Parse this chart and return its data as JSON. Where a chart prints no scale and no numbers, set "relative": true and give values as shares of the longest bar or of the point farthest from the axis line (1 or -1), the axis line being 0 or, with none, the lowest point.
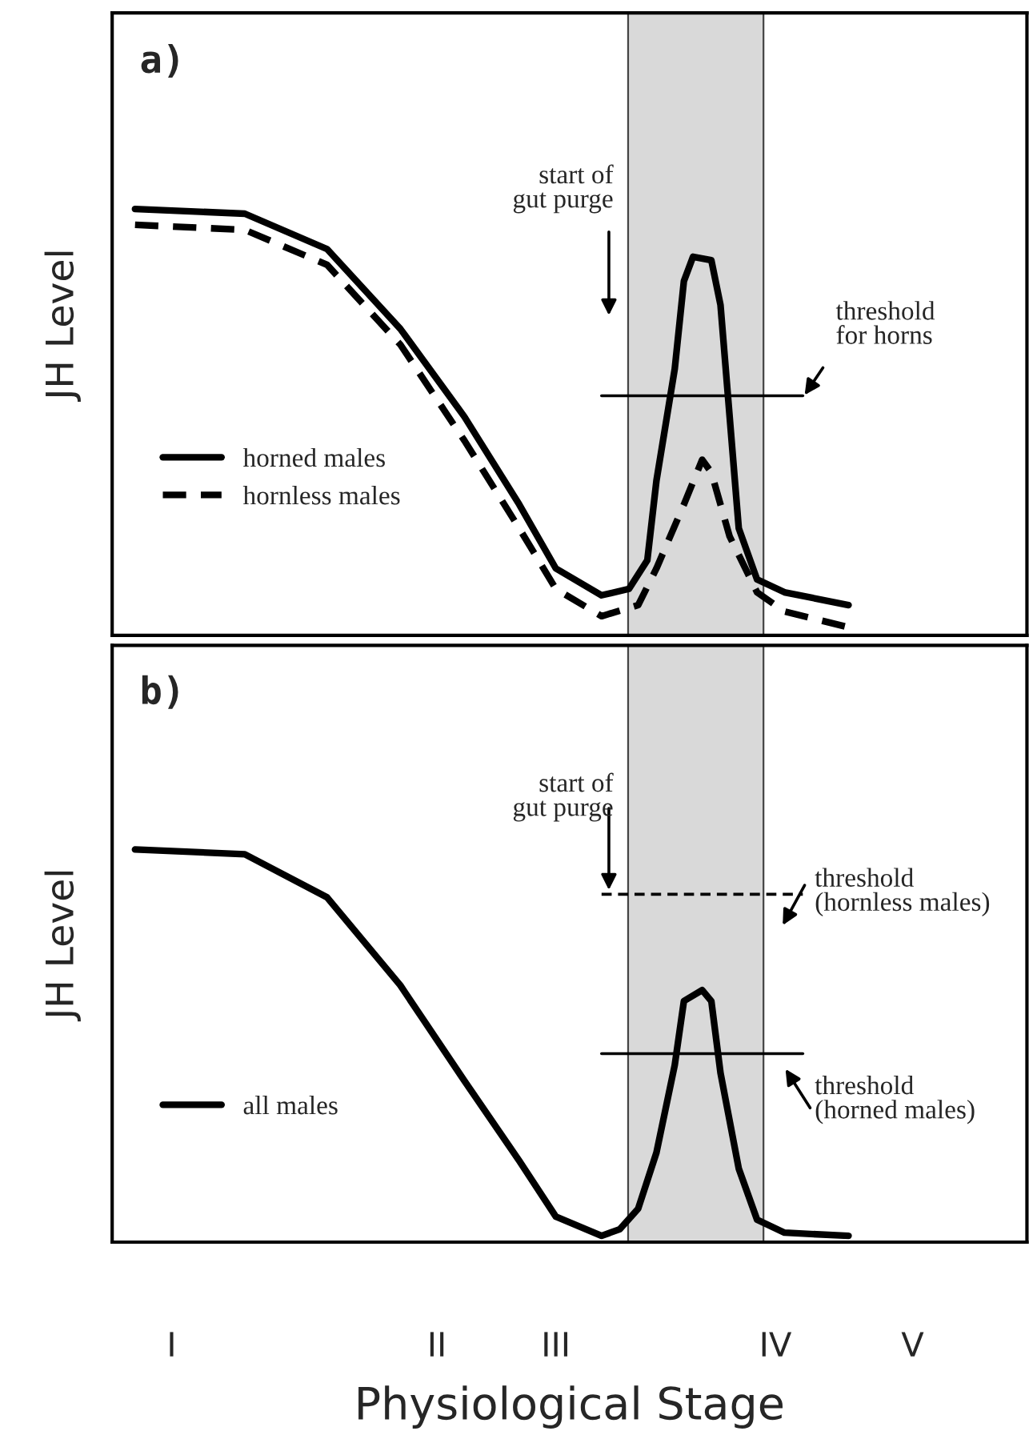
{
  "chart_data": [
    {
      "type": "line",
      "title": "a)",
      "ylabel": "JH Level",
      "relative": true,
      "tick_labels": false,
      "legend": "bottom left",
      "grid": false,
      "categories": [
        null,
        null,
        null,
        null,
        null,
        null,
        null,
        null,
        null,
        null,
        null,
        null,
        null,
        null,
        null,
        null,
        null,
        null,
        null,
        null,
        null,
        null,
        null,
        null,
        null,
        null,
        null,
        null,
        null,
        null,
        null,
        null,
        null,
        null,
        null,
        null,
        null,
        null,
        null,
        null,
        null,
        null,
        null,
        null,
        null,
        null,
        null,
        null,
        null,
        null,
        null,
        null,
        null,
        null,
        null,
        null,
        null,
        null,
        null,
        null,
        null,
        null,
        null,
        null,
        null,
        null,
        null,
        null,
        null,
        null,
        null,
        null,
        null,
        null,
        null,
        null,
        null,
        null,
        null,
        null,
        null,
        null,
        null,
        null,
        null,
        null,
        null,
        null,
        null,
        null,
        null,
        null,
        null,
        null,
        null,
        null,
        null,
        null,
        null,
        null
      ],
      "annotations": [
        "start of\ngut purge",
        "threshold\nfor horns"
      ],
      "series": [
        {
          "name": "horned males",
          "color": "#000000",
          "line_style": "solid",
          "values": [
            null,
            null,
            1,
            null,
            null,
            null,
            null,
            null,
            null,
            null,
            null,
            null,
            null,
            null,
            0.989,
            null,
            null,
            null,
            null,
            null,
            null,
            null,
            null,
            0.906,
            null,
            null,
            null,
            null,
            null,
            null,
            null,
            0.719,
            null,
            null,
            null,
            null,
            null,
            null,
            0.513,
            null,
            null,
            null,
            null,
            null,
            0.307,
            null,
            null,
            null,
            0.157,
            null,
            null,
            null,
            null,
            0.094,
            null,
            null,
            0.109,
            null,
            0.176,
            0.363,
            null,
            0.625,
            0.831,
            0.888,
            null,
            0.88,
            0.775,
            0.513,
            0.251,
            null,
            0.131,
            null,
            null,
            0.101,
            null,
            null,
            null,
            null,
            null,
            null,
            0.071,
            null,
            null,
            null,
            null,
            null,
            null,
            null,
            null,
            null,
            null,
            null,
            null,
            null,
            null,
            null,
            null,
            null,
            null,
            null
          ]
        },
        {
          "name": "hornless males",
          "color": "#000000",
          "line_style": "dashed",
          "values": [
            null,
            null,
            0.963,
            null,
            null,
            null,
            null,
            null,
            null,
            null,
            null,
            null,
            null,
            null,
            0.951,
            null,
            null,
            null,
            null,
            null,
            null,
            null,
            null,
            0.869,
            null,
            null,
            null,
            null,
            null,
            null,
            null,
            0.682,
            null,
            null,
            null,
            null,
            null,
            null,
            0.457,
            null,
            null,
            null,
            null,
            null,
            0.251,
            null,
            null,
            null,
            0.109,
            null,
            null,
            null,
            null,
            0.045,
            null,
            null,
            null,
            0.071,
            null,
            0.157,
            null,
            null,
            0.307,
            null,
            0.412,
            0.382,
            null,
            0.232,
            null,
            null,
            0.101,
            null,
            null,
            0.056,
            null,
            null,
            null,
            null,
            null,
            null,
            0.019,
            null,
            null,
            null,
            null,
            null,
            null,
            null,
            null,
            null,
            null,
            null,
            null,
            null,
            null,
            null,
            null,
            null,
            null,
            null
          ]
        },
        {
          "color": "#000000",
          "line_style": "solid",
          "values": [
            null,
            null,
            null,
            null,
            null,
            null,
            null,
            null,
            null,
            null,
            null,
            null,
            null,
            null,
            null,
            null,
            null,
            null,
            null,
            null,
            null,
            null,
            null,
            null,
            null,
            null,
            null,
            null,
            null,
            null,
            null,
            null,
            null,
            null,
            null,
            null,
            null,
            null,
            null,
            null,
            null,
            null,
            null,
            null,
            null,
            null,
            null,
            null,
            null,
            null,
            null,
            null,
            null,
            0.562,
            null,
            null,
            null,
            null,
            null,
            null,
            null,
            null,
            null,
            null,
            null,
            null,
            null,
            null,
            null,
            null,
            null,
            null,
            null,
            null,
            null,
            0.562,
            null,
            null,
            null,
            null,
            null,
            null,
            null,
            null,
            null,
            null,
            null,
            null,
            null,
            null,
            null,
            null,
            null,
            null,
            null,
            null,
            null,
            null,
            null,
            null
          ]
        }
      ]
    },
    {
      "type": "line",
      "title": "b)",
      "ylabel": "JH Level",
      "xlabel": "Physiological Stage",
      "relative": true,
      "tick_labels": "x",
      "legend": "bottom left",
      "grid": false,
      "categories": [
        null,
        null,
        null,
        null,
        null,
        null,
        "I",
        null,
        null,
        null,
        null,
        null,
        null,
        null,
        null,
        null,
        null,
        null,
        null,
        null,
        null,
        null,
        null,
        null,
        null,
        null,
        null,
        null,
        null,
        null,
        null,
        null,
        null,
        null,
        null,
        "II",
        null,
        null,
        null,
        null,
        null,
        null,
        null,
        null,
        null,
        null,
        null,
        null,
        "III",
        null,
        null,
        null,
        null,
        null,
        null,
        null,
        null,
        null,
        null,
        null,
        null,
        null,
        null,
        null,
        null,
        null,
        null,
        null,
        null,
        null,
        null,
        null,
        "IV",
        null,
        null,
        null,
        null,
        null,
        null,
        null,
        null,
        null,
        null,
        null,
        null,
        null,
        null,
        "V",
        null,
        null,
        null,
        null,
        null,
        null,
        null,
        null,
        null,
        null,
        null,
        null
      ],
      "annotations": [
        "start of\ngut purge",
        "threshold\n(hornless males)",
        "threshold\n(horned males)"
      ],
      "series": [
        {
          "name": "all males",
          "color": "#000000",
          "line_style": "solid",
          "values": [
            null,
            null,
            1,
            null,
            null,
            null,
            null,
            null,
            null,
            null,
            null,
            null,
            null,
            null,
            0.988,
            null,
            null,
            null,
            null,
            null,
            null,
            null,
            null,
            0.878,
            null,
            null,
            null,
            null,
            null,
            null,
            null,
            0.654,
            null,
            null,
            null,
            null,
            null,
            null,
            0.411,
            null,
            null,
            null,
            null,
            null,
            0.207,
            null,
            null,
            null,
            0.065,
            null,
            null,
            null,
            null,
            0.016,
            null,
            0.033,
            null,
            0.085,
            null,
            0.228,
            null,
            0.451,
            0.614,
            null,
            0.642,
            0.614,
            0.431,
            null,
            0.187,
            null,
            0.057,
            null,
            null,
            0.024,
            null,
            null,
            null,
            null,
            null,
            null,
            0.016,
            null,
            null,
            null,
            null,
            null,
            null,
            null,
            null,
            null,
            null,
            null,
            null,
            null,
            null,
            null,
            null,
            null,
            null,
            null
          ]
        },
        {
          "color": "#000000",
          "line_style": "dashed",
          "values": [
            null,
            null,
            null,
            null,
            null,
            null,
            null,
            null,
            null,
            null,
            null,
            null,
            null,
            null,
            null,
            null,
            null,
            null,
            null,
            null,
            null,
            null,
            null,
            null,
            null,
            null,
            null,
            null,
            null,
            null,
            null,
            null,
            null,
            null,
            null,
            null,
            null,
            null,
            null,
            null,
            null,
            null,
            null,
            null,
            null,
            null,
            null,
            null,
            null,
            null,
            null,
            null,
            null,
            0.886,
            null,
            null,
            null,
            null,
            null,
            null,
            null,
            null,
            null,
            null,
            null,
            null,
            null,
            null,
            null,
            null,
            null,
            null,
            null,
            null,
            null,
            0.886,
            null,
            null,
            null,
            null,
            null,
            null,
            null,
            null,
            null,
            null,
            null,
            null,
            null,
            null,
            null,
            null,
            null,
            null,
            null,
            null,
            null,
            null,
            null,
            null
          ]
        },
        {
          "color": "#000000",
          "line_style": "solid",
          "values": [
            null,
            null,
            null,
            null,
            null,
            null,
            null,
            null,
            null,
            null,
            null,
            null,
            null,
            null,
            null,
            null,
            null,
            null,
            null,
            null,
            null,
            null,
            null,
            null,
            null,
            null,
            null,
            null,
            null,
            null,
            null,
            null,
            null,
            null,
            null,
            null,
            null,
            null,
            null,
            null,
            null,
            null,
            null,
            null,
            null,
            null,
            null,
            null,
            null,
            null,
            null,
            null,
            null,
            0.48,
            null,
            null,
            null,
            null,
            null,
            null,
            null,
            null,
            null,
            null,
            null,
            null,
            null,
            null,
            null,
            null,
            null,
            null,
            null,
            null,
            null,
            0.48,
            null,
            null,
            null,
            null,
            null,
            null,
            null,
            null,
            null,
            null,
            null,
            null,
            null,
            null,
            null,
            null,
            null,
            null,
            null,
            null,
            null,
            null,
            null,
            null
          ]
        }
      ]
    }
  ]
}
